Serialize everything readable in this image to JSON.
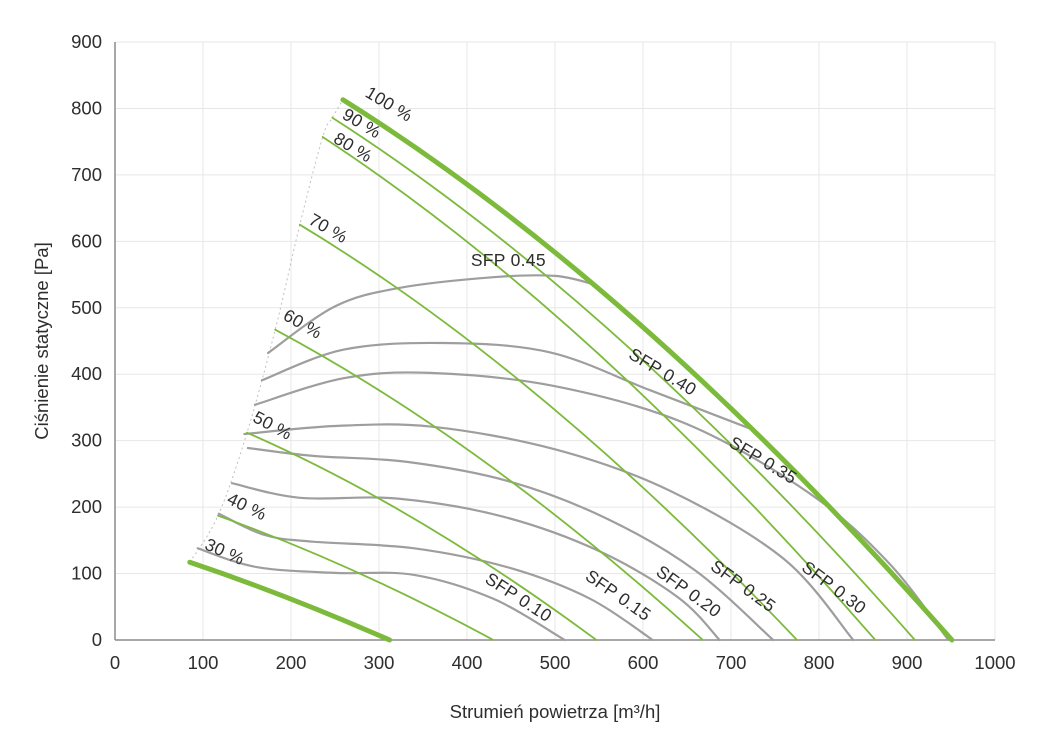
{
  "chart_data": {
    "type": "line",
    "title": "",
    "xlabel": "Strumień powietrza [m³/h]",
    "ylabel": "Ciśnienie statyczne [Pa]",
    "xlim": [
      0,
      1000
    ],
    "ylim": [
      0,
      900
    ],
    "x_ticks": [
      0,
      100,
      200,
      300,
      400,
      500,
      600,
      700,
      800,
      900,
      1000
    ],
    "y_ticks": [
      0,
      100,
      200,
      300,
      400,
      500,
      600,
      700,
      800,
      900
    ],
    "grid": true,
    "legend": "none",
    "colors": {
      "speed_curve": "#7cba3c",
      "sfp_curve": "#9e9e9e",
      "grid": "#e7e7e7",
      "axis": "#8c8c8c",
      "boundary": "#bfbfbf",
      "label_text": "#2e2e2e",
      "background": "#ffffff"
    },
    "boundary_points": [
      [
        85,
        117
      ],
      [
        117,
        187
      ],
      [
        150,
        312
      ],
      [
        182,
        467
      ],
      [
        210,
        625
      ],
      [
        236,
        757
      ],
      [
        247,
        786
      ],
      [
        259,
        813
      ]
    ],
    "speed_curves": [
      {
        "name": "30 %",
        "thick": true,
        "bezier": [
          [
            85,
            117
          ],
          [
            195,
            68
          ],
          [
            312,
            0
          ]
        ],
        "label": {
          "text": "30 %",
          "x": 122,
          "y": 125,
          "rot": 24
        }
      },
      {
        "name": "40 %",
        "thick": false,
        "bezier": [
          [
            117,
            187
          ],
          [
            269,
            115
          ],
          [
            430,
            0
          ]
        ],
        "label": {
          "text": "40 %",
          "x": 147,
          "y": 193,
          "rot": 26
        }
      },
      {
        "name": "50 %",
        "thick": false,
        "bezier": [
          [
            150,
            312
          ],
          [
            343,
            200
          ],
          [
            547,
            0
          ]
        ],
        "label": {
          "text": "50 %",
          "x": 176,
          "y": 315,
          "rot": 28
        }
      },
      {
        "name": "60 %",
        "thick": false,
        "bezier": [
          [
            182,
            467
          ],
          [
            418,
            300
          ],
          [
            668,
            0
          ]
        ],
        "label": {
          "text": "60 %",
          "x": 210,
          "y": 468,
          "rot": 30
        }
      },
      {
        "name": "70 %",
        "thick": false,
        "bezier": [
          [
            210,
            625
          ],
          [
            485,
            405
          ],
          [
            775,
            0
          ]
        ],
        "label": {
          "text": "70 %",
          "x": 239,
          "y": 612,
          "rot": 30
        }
      },
      {
        "name": "80 %",
        "thick": false,
        "bezier": [
          [
            236,
            757
          ],
          [
            541,
            492
          ],
          [
            864,
            0
          ]
        ],
        "label": {
          "text": "80 %",
          "x": 267,
          "y": 734,
          "rot": 31
        }
      },
      {
        "name": "90 %",
        "thick": false,
        "bezier": [
          [
            247,
            786
          ],
          [
            569,
            512
          ],
          [
            909,
            0
          ]
        ],
        "label": {
          "text": "90 %",
          "x": 277,
          "y": 770,
          "rot": 31
        }
      },
      {
        "name": "100 %",
        "thick": true,
        "bezier": [
          [
            259,
            813
          ],
          [
            595,
            535
          ],
          [
            951,
            0
          ]
        ],
        "label": {
          "text": "100 %",
          "x": 308,
          "y": 799,
          "rot": 31
        }
      }
    ],
    "sfp_curves": [
      {
        "name": "SFP 0.10",
        "points": [
          [
            94,
            138
          ],
          [
            160,
            110
          ],
          [
            250,
            101
          ],
          [
            340,
            98
          ],
          [
            430,
            62
          ],
          [
            511,
            0
          ]
        ],
        "label": {
          "text": "SFP 0.10",
          "x": 455,
          "y": 57,
          "rot": 33
        }
      },
      {
        "name": "SFP 0.15",
        "points": [
          [
            118,
            190
          ],
          [
            170,
            158
          ],
          [
            225,
            148
          ],
          [
            340,
            138
          ],
          [
            450,
            108
          ],
          [
            540,
            62
          ],
          [
            611,
            0
          ]
        ],
        "label": {
          "text": "SFP 0.15",
          "x": 568,
          "y": 60,
          "rot": 35
        }
      },
      {
        "name": "SFP 0.20",
        "points": [
          [
            133,
            236
          ],
          [
            210,
            214
          ],
          [
            320,
            213
          ],
          [
            440,
            186
          ],
          [
            550,
            134
          ],
          [
            640,
            64
          ],
          [
            687,
            0
          ]
        ],
        "label": {
          "text": "SFP 0.20",
          "x": 648,
          "y": 66,
          "rot": 36
        }
      },
      {
        "name": "SFP 0.25",
        "points": [
          [
            151,
            289
          ],
          [
            225,
            277
          ],
          [
            332,
            268
          ],
          [
            450,
            238
          ],
          [
            560,
            182
          ],
          [
            660,
            104
          ],
          [
            748,
            0
          ]
        ],
        "label": {
          "text": "SFP 0.25",
          "x": 710,
          "y": 74,
          "rot": 36
        }
      },
      {
        "name": "SFP 0.30",
        "points": [
          [
            147,
            310
          ],
          [
            250,
            322
          ],
          [
            360,
            321
          ],
          [
            500,
            287
          ],
          [
            630,
            225
          ],
          [
            760,
            122
          ],
          [
            839,
            0
          ]
        ],
        "label": {
          "text": "SFP 0.30",
          "x": 813,
          "y": 72,
          "rot": 37
        }
      },
      {
        "name": "SFP 0.35",
        "points": [
          [
            159,
            354
          ],
          [
            260,
            394
          ],
          [
            358,
            402
          ],
          [
            500,
            382
          ],
          [
            650,
            325
          ],
          [
            790,
            220
          ],
          [
            880,
            115
          ],
          [
            947,
            0
          ]
        ],
        "label": {
          "text": "SFP 0.35",
          "x": 733,
          "y": 263,
          "rot": 31
        }
      },
      {
        "name": "SFP 0.40",
        "points": [
          [
            167,
            391
          ],
          [
            260,
            437
          ],
          [
            373,
            447
          ],
          [
            494,
            433
          ],
          [
            608,
            376
          ],
          [
            722,
            318
          ]
        ],
        "label": {
          "text": "SFP 0.40",
          "x": 619,
          "y": 396,
          "rot": 31
        }
      },
      {
        "name": "SFP 0.45",
        "points": [
          [
            174,
            432
          ],
          [
            250,
            502
          ],
          [
            324,
            530
          ],
          [
            430,
            546
          ],
          [
            500,
            548
          ],
          [
            545,
            535
          ]
        ],
        "label": {
          "text": "SFP 0.45",
          "x": 447,
          "y": 563,
          "rot": 0
        }
      }
    ]
  }
}
